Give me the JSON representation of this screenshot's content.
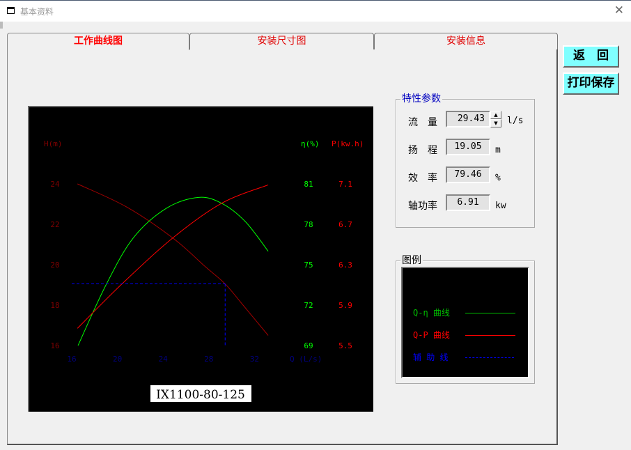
{
  "window": {
    "title": "基本资料",
    "close_icon": "close-icon",
    "app_icon": "window-icon"
  },
  "tabs": [
    {
      "label": "工作曲线图",
      "active": true
    },
    {
      "label": "安装尺寸图",
      "active": false
    },
    {
      "label": "安装信息",
      "active": false
    }
  ],
  "buttons": {
    "back": "返　回",
    "print_save": "打印保存"
  },
  "params": {
    "title": "特性参数",
    "flow": {
      "label": "流　量",
      "value": "29.43",
      "unit": "l/s"
    },
    "head": {
      "label": "扬　程",
      "value": "19.05",
      "unit": "m"
    },
    "efficiency": {
      "label": "效　率",
      "value": "79.46",
      "unit": "%"
    },
    "power": {
      "label": "轴功率",
      "value": "6.91",
      "unit": "kw"
    }
  },
  "legend": {
    "title": "图例",
    "items": [
      {
        "label": "Q-η 曲线",
        "color": "#00c000",
        "style": "solid"
      },
      {
        "label": "Q-P 曲线",
        "color": "#ff0000",
        "style": "solid"
      },
      {
        "label": "辅 助 线",
        "color": "#0000ff",
        "style": "dashed"
      }
    ]
  },
  "chart_data": {
    "type": "line",
    "model": "IX1100-80-125",
    "xlabel": "Q (L/s)",
    "x_ticks": [
      "16",
      "20",
      "24",
      "28",
      "32"
    ],
    "xlim": [
      16,
      32
    ],
    "axes": {
      "head": {
        "label": "H(m)",
        "ticks": [
          "24",
          "22",
          "20",
          "18",
          "16"
        ],
        "ylim": [
          16,
          24
        ],
        "color": "#800000"
      },
      "efficiency": {
        "label": "η(%)",
        "ticks": [
          "81",
          "78",
          "75",
          "72",
          "69"
        ],
        "ylim": [
          69,
          81
        ],
        "color": "#00ff00"
      },
      "power": {
        "label": "P(kw.h)",
        "ticks": [
          "7.1",
          "6.7",
          "6.3",
          "5.9",
          "5.5"
        ],
        "ylim": [
          5.5,
          7.1
        ],
        "color": "#ff0000"
      }
    },
    "series": [
      {
        "axis": "head",
        "color": "#a00000",
        "points": [
          [
            16.5,
            24
          ],
          [
            20.8,
            22.86
          ],
          [
            24.9,
            21.3
          ],
          [
            27.7,
            19.9
          ],
          [
            29.43,
            19.05
          ],
          [
            31,
            18.0
          ],
          [
            33.2,
            16.5
          ]
        ]
      },
      {
        "axis": "efficiency",
        "color": "#00ff00",
        "points": [
          [
            16.55,
            69
          ],
          [
            19,
            73.5
          ],
          [
            21.4,
            77.0
          ],
          [
            24.3,
            79.2
          ],
          [
            27.1,
            80.0
          ],
          [
            29.15,
            79.55
          ],
          [
            31.2,
            78.2
          ],
          [
            33.2,
            76.0
          ]
        ]
      },
      {
        "axis": "power",
        "color": "#ff0000",
        "points": [
          [
            16.5,
            5.67
          ],
          [
            20.4,
            6.11
          ],
          [
            24.9,
            6.57
          ],
          [
            29.15,
            6.91
          ],
          [
            33.2,
            7.09
          ]
        ]
      }
    ],
    "operating_point": {
      "Q": 29.43,
      "H": 19.05,
      "color": "#0000ff"
    }
  }
}
